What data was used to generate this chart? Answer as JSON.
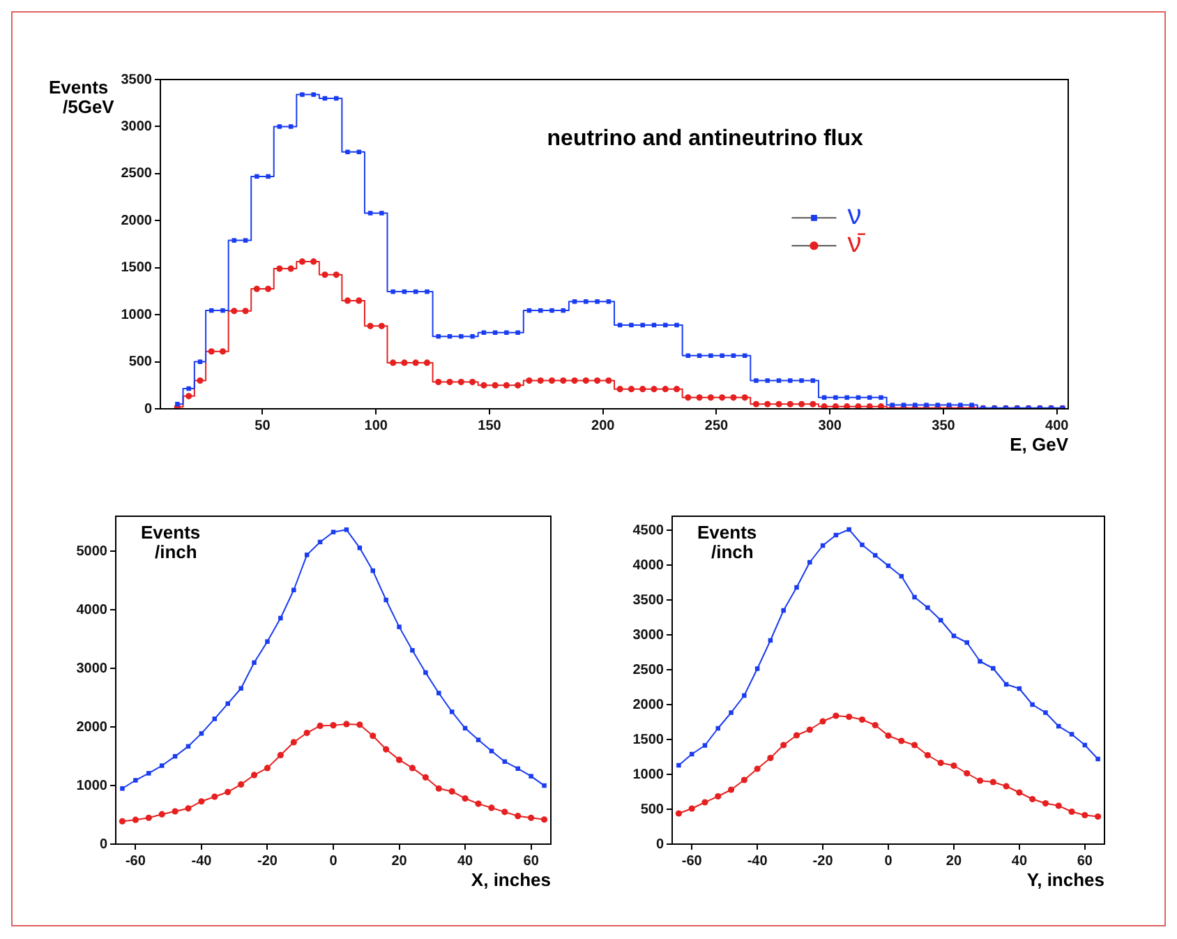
{
  "chart_data": [
    {
      "type": "step",
      "title": "neutrino and antineutrino flux",
      "xlabel": "E, GeV",
      "ylabel": "Events /5GeV",
      "x": [
        12.5,
        17.5,
        22.5,
        27.5,
        32.5,
        37.5,
        42.5,
        47.5,
        52.5,
        57.5,
        62.5,
        67.5,
        72.5,
        77.5,
        82.5,
        87.5,
        92.5,
        97.5,
        102.5,
        107.5,
        112.5,
        117.5,
        122.5,
        127.5,
        132.5,
        137.5,
        142.5,
        147.5,
        152.5,
        157.5,
        162.5,
        167.5,
        172.5,
        177.5,
        182.5,
        187.5,
        192.5,
        197.5,
        202.5,
        207.5,
        212.5,
        217.5,
        222.5,
        227.5,
        232.5,
        237.5,
        242.5,
        247.5,
        252.5,
        257.5,
        262.5,
        267.5,
        272.5,
        277.5,
        282.5,
        287.5,
        292.5,
        297.5,
        302.5,
        307.5,
        312.5,
        317.5,
        322.5,
        327.5,
        332.5,
        337.5,
        342.5,
        347.5,
        352.5,
        357.5,
        362.5,
        367.5,
        372.5,
        377.5,
        382.5,
        387.5,
        392.5,
        397.5,
        402.5
      ],
      "series": [
        {
          "name": "ν",
          "color": "#1a3cf0",
          "marker": "square",
          "values": [
            50,
            215,
            500,
            1045,
            1045,
            1790,
            1790,
            2470,
            2470,
            3000,
            3000,
            3340,
            3340,
            3300,
            3300,
            2730,
            2730,
            2080,
            2080,
            1245,
            1245,
            1245,
            1245,
            770,
            770,
            770,
            770,
            810,
            810,
            810,
            810,
            1045,
            1045,
            1045,
            1045,
            1140,
            1140,
            1140,
            1140,
            890,
            890,
            890,
            890,
            890,
            890,
            565,
            565,
            565,
            565,
            565,
            565,
            300,
            300,
            300,
            300,
            300,
            300,
            120,
            120,
            120,
            120,
            120,
            120,
            40,
            40,
            40,
            40,
            40,
            40,
            40,
            40,
            10,
            10,
            10,
            10,
            10,
            10,
            10,
            10
          ]
        },
        {
          "name": "ν̄",
          "color": "#e62020",
          "marker": "circle",
          "values": [
            20,
            135,
            300,
            610,
            610,
            1040,
            1040,
            1275,
            1275,
            1490,
            1490,
            1565,
            1565,
            1425,
            1425,
            1150,
            1150,
            880,
            880,
            490,
            490,
            490,
            490,
            285,
            285,
            285,
            285,
            250,
            250,
            250,
            250,
            300,
            300,
            300,
            300,
            300,
            300,
            300,
            300,
            210,
            210,
            210,
            210,
            210,
            210,
            120,
            120,
            120,
            120,
            120,
            120,
            50,
            50,
            50,
            50,
            50,
            50,
            25,
            25,
            25,
            25,
            25,
            25,
            10,
            10,
            10,
            10,
            10,
            10,
            10,
            10,
            5,
            5,
            5,
            5,
            5,
            5,
            5,
            5
          ]
        }
      ],
      "xlim": [
        5,
        405
      ],
      "xticks": [
        50,
        100,
        150,
        200,
        250,
        300,
        350,
        400
      ],
      "ylim": [
        0,
        3500
      ],
      "yticks": [
        0,
        500,
        1000,
        1500,
        2000,
        2500,
        3000,
        3500
      ],
      "legend": "right"
    },
    {
      "type": "line",
      "xlabel": "X, inches",
      "ylabel": "Events /inch",
      "x": [
        -64,
        -60,
        -56,
        -52,
        -48,
        -44,
        -40,
        -36,
        -32,
        -28,
        -24,
        -20,
        -16,
        -12,
        -8,
        -4,
        0,
        4,
        8,
        12,
        16,
        20,
        24,
        28,
        32,
        36,
        40,
        44,
        48,
        52,
        56,
        60,
        64
      ],
      "series": [
        {
          "color": "#1a3cf0",
          "marker": "square",
          "values": [
            950,
            1090,
            1210,
            1340,
            1500,
            1670,
            1890,
            2140,
            2400,
            2660,
            3100,
            3460,
            3860,
            4340,
            4940,
            5160,
            5330,
            5370,
            5060,
            4670,
            4170,
            3710,
            3310,
            2930,
            2580,
            2260,
            1980,
            1780,
            1590,
            1410,
            1290,
            1160,
            1000
          ]
        },
        {
          "color": "#e62020",
          "marker": "circle",
          "values": [
            390,
            415,
            450,
            510,
            560,
            610,
            730,
            810,
            890,
            1020,
            1180,
            1300,
            1520,
            1740,
            1900,
            2020,
            2030,
            2050,
            2040,
            1850,
            1620,
            1440,
            1300,
            1140,
            950,
            900,
            780,
            690,
            620,
            550,
            480,
            450,
            420
          ]
        }
      ],
      "xlim": [
        -66,
        66
      ],
      "xticks": [
        -60,
        -40,
        -20,
        0,
        20,
        40,
        60
      ],
      "ylim": [
        0,
        5600
      ],
      "yticks": [
        0,
        1000,
        2000,
        3000,
        4000,
        5000
      ]
    },
    {
      "type": "line",
      "xlabel": "Y, inches",
      "ylabel": "Events /inch",
      "x": [
        -64,
        -60,
        -56,
        -52,
        -48,
        -44,
        -40,
        -36,
        -32,
        -28,
        -24,
        -20,
        -16,
        -12,
        -8,
        -4,
        0,
        4,
        8,
        12,
        16,
        20,
        24,
        28,
        32,
        36,
        40,
        44,
        48,
        52,
        56,
        60,
        64
      ],
      "series": [
        {
          "color": "#1a3cf0",
          "marker": "square",
          "values": [
            1130,
            1290,
            1415,
            1660,
            1885,
            2130,
            2515,
            2920,
            3350,
            3680,
            4040,
            4280,
            4430,
            4510,
            4290,
            4140,
            3990,
            3840,
            3540,
            3390,
            3210,
            2985,
            2890,
            2620,
            2520,
            2290,
            2230,
            2000,
            1885,
            1690,
            1575,
            1420,
            1220
          ]
        },
        {
          "color": "#e62020",
          "marker": "circle",
          "values": [
            440,
            510,
            600,
            685,
            780,
            920,
            1080,
            1235,
            1420,
            1560,
            1640,
            1760,
            1840,
            1825,
            1785,
            1705,
            1555,
            1480,
            1420,
            1275,
            1165,
            1125,
            1015,
            910,
            890,
            830,
            740,
            645,
            585,
            550,
            465,
            415,
            395
          ]
        }
      ],
      "xlim": [
        -66,
        66
      ],
      "xticks": [
        -60,
        -40,
        -20,
        0,
        20,
        40,
        60
      ],
      "ylim": [
        0,
        4700
      ],
      "yticks": [
        0,
        500,
        1000,
        1500,
        2000,
        2500,
        3000,
        3500,
        4000,
        4500
      ]
    }
  ]
}
